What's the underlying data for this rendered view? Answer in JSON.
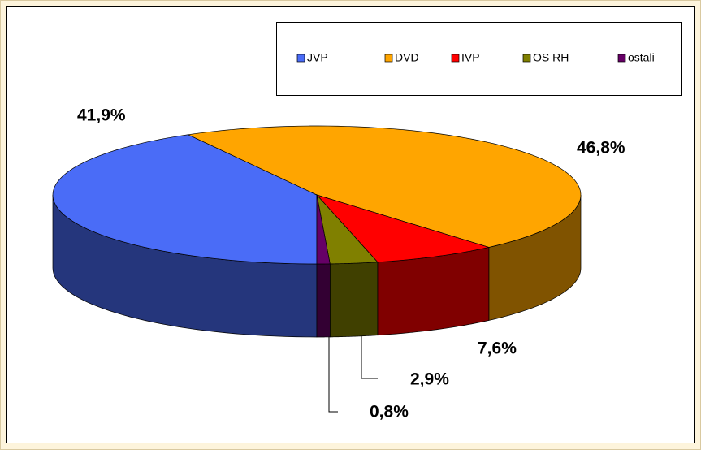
{
  "chart_data": {
    "type": "pie",
    "categories": [
      "JVP",
      "DVD",
      "IVP",
      "OS RH",
      "ostali"
    ],
    "values": [
      41.9,
      46.8,
      7.6,
      2.9,
      0.8
    ],
    "value_labels": [
      "41,9%",
      "46,8%",
      "7,6%",
      "2,9%",
      "0,8%"
    ],
    "colors": [
      "#4a6cf7",
      "#ffa500",
      "#ff0000",
      "#808000",
      "#660066"
    ],
    "legend": "top-right"
  }
}
